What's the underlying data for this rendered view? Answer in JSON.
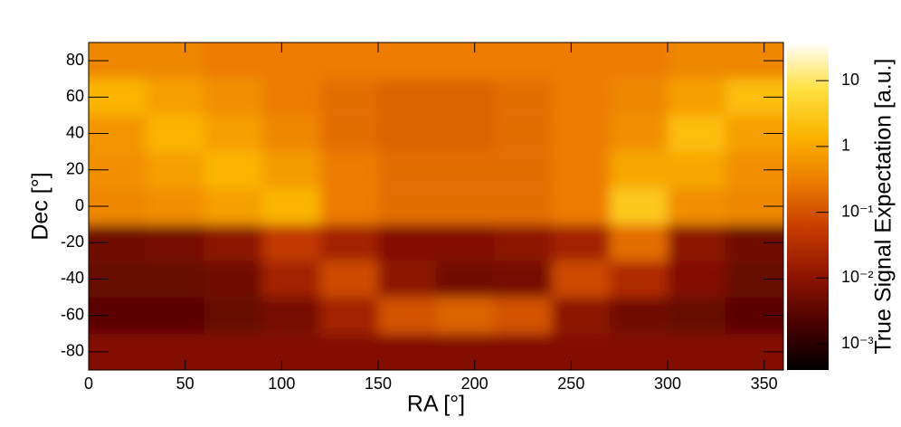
{
  "chart_data": {
    "type": "heatmap",
    "x_label": "RA [°]",
    "y_label": "Dec [°]",
    "z_label": "True Signal Expectation [a.u.]",
    "x": [
      15,
      45,
      75,
      105,
      135,
      165,
      195,
      225,
      255,
      285,
      315,
      345
    ],
    "y": [
      -80,
      -60,
      -40,
      -20,
      0,
      20,
      40,
      60,
      80
    ],
    "z": [
      [
        0.008,
        0.008,
        0.008,
        0.008,
        0.008,
        0.008,
        0.008,
        0.008,
        0.008,
        0.008,
        0.008,
        0.008
      ],
      [
        0.003,
        0.003,
        0.004,
        0.006,
        0.02,
        0.1,
        0.15,
        0.1,
        0.01,
        0.005,
        0.004,
        0.003
      ],
      [
        0.004,
        0.004,
        0.005,
        0.02,
        0.08,
        0.01,
        0.005,
        0.006,
        0.08,
        0.03,
        0.008,
        0.004
      ],
      [
        0.005,
        0.006,
        0.01,
        0.05,
        0.02,
        0.008,
        0.008,
        0.01,
        0.02,
        0.2,
        0.01,
        0.005
      ],
      [
        0.4,
        0.5,
        0.8,
        1.5,
        0.3,
        0.2,
        0.2,
        0.2,
        0.3,
        3,
        0.5,
        0.4
      ],
      [
        0.5,
        0.8,
        1.5,
        0.7,
        0.3,
        0.2,
        0.2,
        0.2,
        0.3,
        1,
        1,
        0.5
      ],
      [
        0.6,
        1.5,
        0.8,
        0.4,
        0.2,
        0.15,
        0.15,
        0.2,
        0.3,
        0.5,
        2,
        0.8
      ],
      [
        1.5,
        0.8,
        0.5,
        0.3,
        0.2,
        0.15,
        0.15,
        0.2,
        0.3,
        0.4,
        0.8,
        2
      ],
      [
        0.4,
        0.4,
        0.3,
        0.3,
        0.3,
        0.3,
        0.3,
        0.3,
        0.3,
        0.3,
        0.4,
        0.4
      ]
    ],
    "xlim": [
      0,
      360
    ],
    "ylim": [
      -90,
      90
    ],
    "xticks": [
      0,
      50,
      100,
      150,
      200,
      250,
      300,
      350
    ],
    "yticks": [
      -80,
      -60,
      -40,
      -20,
      0,
      20,
      40,
      60,
      80
    ],
    "zlim": [
      0.0004,
      38
    ],
    "z_log_scale": true,
    "zticks": [
      {
        "value": 0.001,
        "label": "10⁻³"
      },
      {
        "value": 0.01,
        "label": "10⁻²"
      },
      {
        "value": 0.1,
        "label": "10⁻¹"
      },
      1,
      10
    ],
    "colormap": [
      "#000000",
      "#4a0200",
      "#8e1400",
      "#c43a00",
      "#ec7a00",
      "#fbb400",
      "#ffe040",
      "#ffffff"
    ]
  }
}
